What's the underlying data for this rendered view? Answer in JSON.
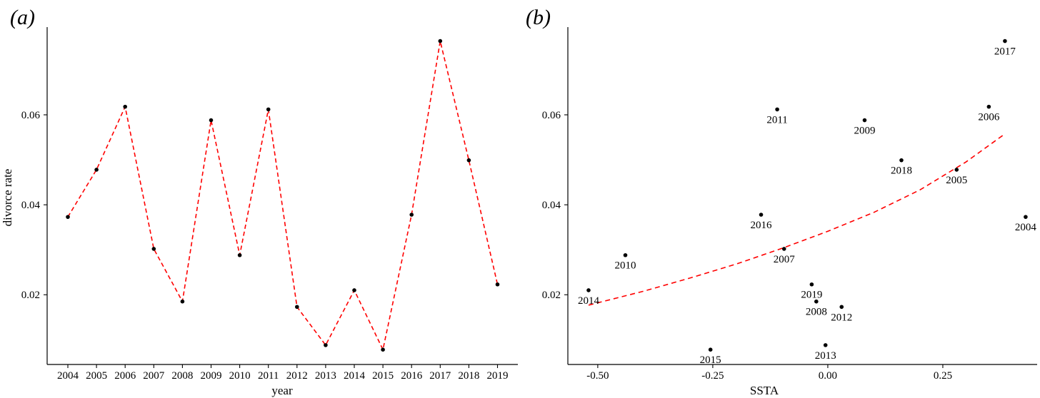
{
  "chart_data": [
    {
      "type": "line",
      "panel_label": "(a)",
      "xlabel": "year",
      "ylabel": "divorce rate",
      "categories": [
        "2004",
        "2005",
        "2006",
        "2007",
        "2008",
        "2009",
        "2010",
        "2011",
        "2012",
        "2013",
        "2014",
        "2015",
        "2016",
        "2017",
        "2018",
        "2019"
      ],
      "values": [
        0.0373,
        0.0478,
        0.0618,
        0.0302,
        0.0185,
        0.0588,
        0.0288,
        0.0612,
        0.0173,
        0.0088,
        0.021,
        0.0078,
        0.0378,
        0.0764,
        0.0499,
        0.0223
      ],
      "yticks": [
        "0.02",
        "0.04",
        "0.06"
      ],
      "ylim": [
        0.0045,
        0.0795
      ],
      "line_style": "dashed",
      "line_color": "#ff0000",
      "point_color": "#000000",
      "grid": false
    },
    {
      "type": "scatter",
      "panel_label": "(b)",
      "xlabel": "SSTA",
      "ylabel": "",
      "xticks": [
        "-0.50",
        "-0.25",
        "0.00",
        "0.25"
      ],
      "yticks": [
        "0.02",
        "0.04",
        "0.06"
      ],
      "xlim": [
        -0.565,
        0.455
      ],
      "ylim": [
        0.0045,
        0.0795
      ],
      "points": [
        {
          "label": "2004",
          "x": 0.43,
          "y": 0.0373
        },
        {
          "label": "2005",
          "x": 0.28,
          "y": 0.0478
        },
        {
          "label": "2006",
          "x": 0.35,
          "y": 0.0618
        },
        {
          "label": "2007",
          "x": -0.095,
          "y": 0.0302
        },
        {
          "label": "2008",
          "x": -0.025,
          "y": 0.0185
        },
        {
          "label": "2009",
          "x": 0.08,
          "y": 0.0588
        },
        {
          "label": "2010",
          "x": -0.44,
          "y": 0.0288
        },
        {
          "label": "2011",
          "x": -0.11,
          "y": 0.0612
        },
        {
          "label": "2012",
          "x": 0.03,
          "y": 0.0173
        },
        {
          "label": "2013",
          "x": -0.005,
          "y": 0.0088
        },
        {
          "label": "2014",
          "x": -0.52,
          "y": 0.021
        },
        {
          "label": "2015",
          "x": -0.255,
          "y": 0.0078
        },
        {
          "label": "2016",
          "x": -0.145,
          "y": 0.0378
        },
        {
          "label": "2017",
          "x": 0.385,
          "y": 0.0764
        },
        {
          "label": "2018",
          "x": 0.16,
          "y": 0.0499
        },
        {
          "label": "2019",
          "x": -0.035,
          "y": 0.0223
        }
      ],
      "fit": {
        "style": "dashed",
        "color": "#ff0000",
        "x": [
          -0.52,
          -0.4,
          -0.3,
          -0.2,
          -0.1,
          0.0,
          0.1,
          0.2,
          0.3,
          0.38
        ],
        "y": [
          0.0177,
          0.0208,
          0.0237,
          0.0268,
          0.0303,
          0.0341,
          0.0383,
          0.0433,
          0.0495,
          0.0554
        ]
      },
      "grid": false
    }
  ]
}
